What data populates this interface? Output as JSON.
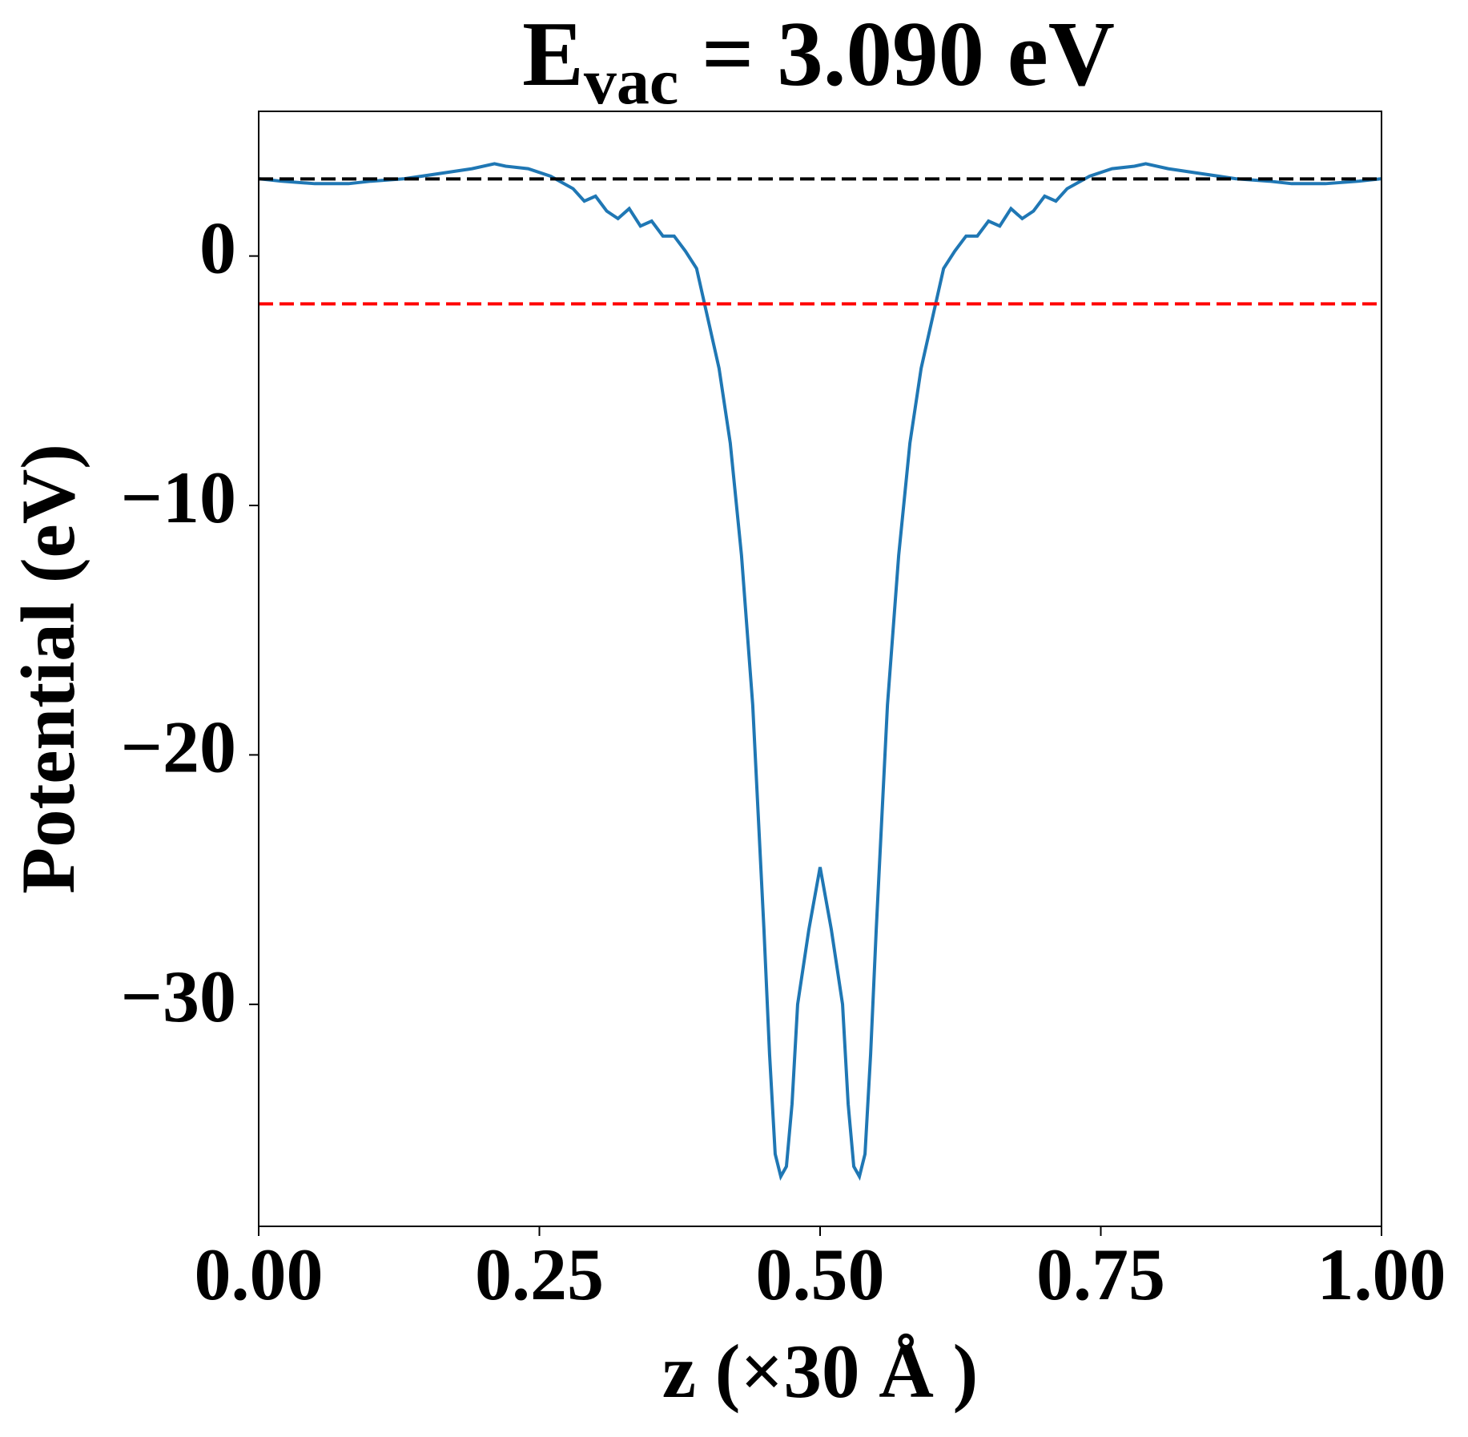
{
  "chart_data": {
    "type": "line",
    "title": "E",
    "title_subscript": "vac",
    "title_suffix": " = 3.090 eV",
    "xlabel": "z (×30 Å )",
    "ylabel": "Potential (eV)",
    "x": [
      0,
      0.02,
      0.05,
      0.08,
      0.1,
      0.13,
      0.16,
      0.19,
      0.21,
      0.22,
      0.24,
      0.26,
      0.28,
      0.29,
      0.3,
      0.31,
      0.32,
      0.33,
      0.34,
      0.35,
      0.36,
      0.37,
      0.38,
      0.39,
      0.395,
      0.4,
      0.41,
      0.42,
      0.43,
      0.44,
      0.45,
      0.455,
      0.46,
      0.465,
      0.47,
      0.475,
      0.48,
      0.49,
      0.5,
      0.51,
      0.52,
      0.525,
      0.53,
      0.535,
      0.54,
      0.545,
      0.55,
      0.56,
      0.57,
      0.58,
      0.59,
      0.6,
      0.605,
      0.61,
      0.62,
      0.63,
      0.64,
      0.65,
      0.66,
      0.67,
      0.68,
      0.69,
      0.7,
      0.71,
      0.72,
      0.74,
      0.76,
      0.78,
      0.79,
      0.81,
      0.84,
      0.87,
      0.9,
      0.92,
      0.95,
      0.98,
      1
    ],
    "series": [
      {
        "color": "#1f77b4",
        "values": [
          3.1,
          3.0,
          2.9,
          2.9,
          3.0,
          3.1,
          3.3,
          3.5,
          3.7,
          3.6,
          3.5,
          3.2,
          2.7,
          2.2,
          2.4,
          1.8,
          1.5,
          1.9,
          1.2,
          1.4,
          0.8,
          0.8,
          0.2,
          -0.5,
          -1.5,
          -2.5,
          -4.5,
          -7.5,
          -12,
          -18,
          -27,
          -32,
          -36,
          -36.9,
          -36.5,
          -34,
          -30,
          -27,
          -24.5,
          -27,
          -30,
          -34,
          -36.5,
          -36.9,
          -36,
          -32,
          -27,
          -18,
          -12,
          -7.5,
          -4.5,
          -2.5,
          -1.5,
          -0.5,
          0.2,
          0.8,
          0.8,
          1.4,
          1.2,
          1.9,
          1.5,
          1.8,
          2.4,
          2.2,
          2.7,
          3.2,
          3.5,
          3.6,
          3.7,
          3.5,
          3.3,
          3.1,
          3.0,
          2.9,
          2.9,
          3.0,
          3.1
        ]
      }
    ],
    "hlines": [
      {
        "value": 3.09,
        "color": "#000000",
        "linestyle": "dashed"
      },
      {
        "value": -1.92,
        "color": "#ff0000",
        "linestyle": "dashed"
      }
    ],
    "xlim": [
      0,
      1
    ],
    "ylim": [
      -38.9,
      5.8
    ],
    "xticks": [
      {
        "value": 0,
        "label": "0.00"
      },
      0.25,
      {
        "value": 0.5,
        "label": "0.50"
      },
      0.75,
      {
        "value": 1,
        "label": "1.00"
      }
    ],
    "yticks": [
      {
        "value": -30,
        "label": "−30"
      },
      {
        "value": -20,
        "label": "−20"
      },
      {
        "value": -10,
        "label": "−10"
      },
      0
    ],
    "grid": false
  }
}
